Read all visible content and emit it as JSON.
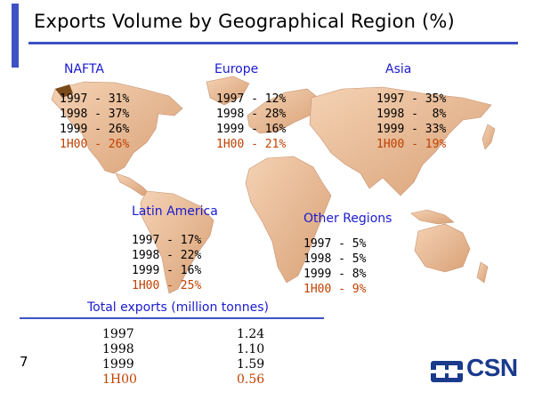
{
  "slide": {
    "title": "Exports Volume by Geographical Region (%)",
    "page_number": "7"
  },
  "regions": [
    {
      "name": "NAFTA",
      "rows": [
        "1997 - 31%",
        "1998 - 37%",
        "1999 - 26%",
        "1H00 - 26%"
      ]
    },
    {
      "name": "Europe",
      "rows": [
        "1997 - 12%",
        "1998 - 28%",
        "1999 - 16%",
        "1H00 - 21%"
      ]
    },
    {
      "name": "Asia",
      "rows": [
        "1997 - 35%",
        "1998 -  8%",
        "1999 - 33%",
        "1H00 - 19%"
      ]
    },
    {
      "name": "Latin America",
      "rows": [
        "1997 - 17%",
        "1998 - 22%",
        "1999 - 16%",
        "1H00 - 25%"
      ]
    },
    {
      "name": "Other Regions",
      "rows": [
        "1997 - 5%",
        "1998 - 5%",
        "1999 - 8%",
        "1H00 - 9%"
      ]
    }
  ],
  "totals": {
    "title": "Total exports (million tonnes)",
    "years": [
      "1997",
      "1998",
      "1999",
      "1H00"
    ],
    "values": [
      "1.24",
      "1.10",
      "1.59",
      "0.56"
    ]
  },
  "logo": {
    "text": "CSN"
  },
  "colors": {
    "accent": "#3d52c4",
    "label_blue": "#1a1ad0",
    "highlight": "#c04000",
    "land": "#e8b894",
    "logo_blue": "#1a3a8c"
  }
}
